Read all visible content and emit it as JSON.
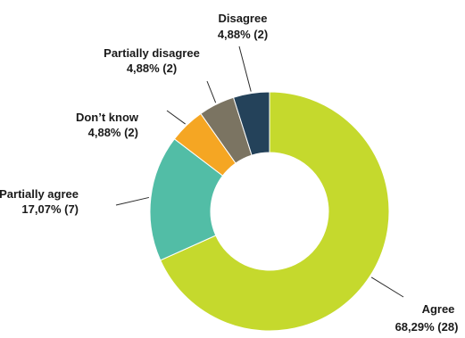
{
  "chart_data": {
    "type": "pie",
    "donut": true,
    "slices": [
      {
        "name": "Agree",
        "label": "Agree",
        "value_text": "68,29% (28)",
        "percent": 68.29,
        "count": 28,
        "color": "#c5d92d"
      },
      {
        "name": "Partially agree",
        "label": "Partially agree",
        "value_text": "17,07% (7)",
        "percent": 17.07,
        "count": 7,
        "color": "#52bda6"
      },
      {
        "name": "Don't know",
        "label": "Don’t know",
        "value_text": "4,88% (2)",
        "percent": 4.88,
        "count": 2,
        "color": "#f5a623"
      },
      {
        "name": "Partially disagree",
        "label": "Partially disagree",
        "value_text": "4,88% (2)",
        "percent": 4.88,
        "count": 2,
        "color": "#7b7462"
      },
      {
        "name": "Disagree",
        "label": "Disagree",
        "value_text": "4,88% (2)",
        "percent": 4.88,
        "count": 2,
        "color": "#24425a"
      }
    ],
    "title": "",
    "legend": "none"
  }
}
